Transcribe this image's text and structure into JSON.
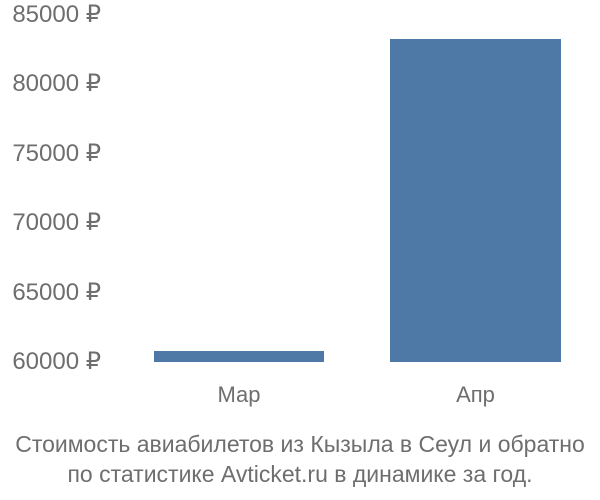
{
  "page": {
    "background_color": "#ffffff",
    "text_color": "#6e6e6e"
  },
  "chart_data": {
    "type": "bar",
    "title": "",
    "categories": [
      "Мар",
      "Апр"
    ],
    "values": [
      60800,
      83300
    ],
    "yticks": [
      {
        "value": 85000,
        "label": "85000 ₽"
      },
      {
        "value": 80000,
        "label": "80000 ₽"
      },
      {
        "value": 75000,
        "label": "75000 ₽"
      },
      {
        "value": 70000,
        "label": "70000 ₽"
      },
      {
        "value": 65000,
        "label": "65000 ₽"
      },
      {
        "value": 60000,
        "label": "60000 ₽"
      }
    ],
    "ylim": [
      60000,
      85000
    ],
    "ylabel": "",
    "xlabel": "",
    "grid": false,
    "legend_position": "none",
    "bar_color": "#4e79a7",
    "currency": "₽"
  },
  "caption": {
    "lines": [
      "Стоимость авиабилетов из Кызыла в Сеул и обратно",
      "по статистике Avticket.ru в динамике за год."
    ]
  }
}
